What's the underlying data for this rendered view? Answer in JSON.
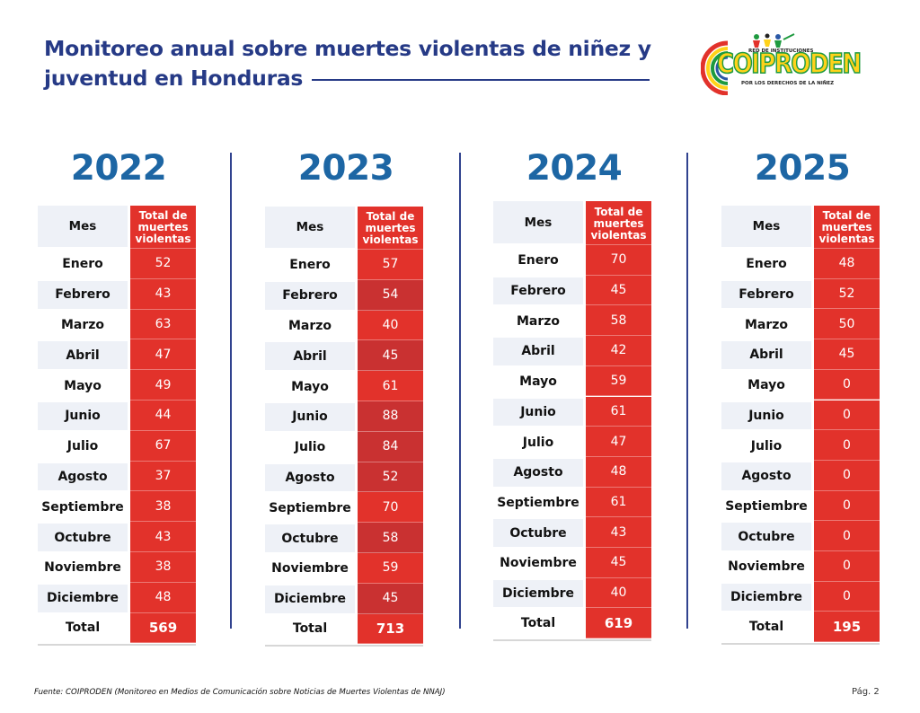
{
  "header": {
    "title_line1": "Monitoreo anual sobre muertes violentas de niñez y",
    "title_line2": "juventud en Honduras"
  },
  "logo": {
    "top_text": "RED DE INSTITUCIONES",
    "name": "COIPRODEN",
    "sub_text": "POR LOS DERECHOS DE LA NIÑEZ"
  },
  "table_headers": {
    "month": "Mes",
    "value": "Total de muertes violentas"
  },
  "total_label": "Total",
  "months": [
    "Enero",
    "Febrero",
    "Marzo",
    "Abril",
    "Mayo",
    "Junio",
    "Julio",
    "Agosto",
    "Septiembre",
    "Octubre",
    "Noviembre",
    "Diciembre"
  ],
  "years": [
    {
      "year": "2022",
      "values": [
        "52",
        "43",
        "63",
        "47",
        "49",
        "44",
        "67",
        "37",
        "38",
        "43",
        "38",
        "48"
      ],
      "total": "569"
    },
    {
      "year": "2023",
      "values": [
        "57",
        "54",
        "40",
        "45",
        "61",
        "88",
        "84",
        "52",
        "70",
        "58",
        "59",
        "45"
      ],
      "total": "713"
    },
    {
      "year": "2024",
      "values": [
        "70",
        "45",
        "58",
        "42",
        "59",
        "61",
        "47",
        "48",
        "61",
        "43",
        "45",
        "40"
      ],
      "total": "619"
    },
    {
      "year": "2025",
      "values": [
        "48",
        "52",
        "50",
        "45",
        "0",
        "0",
        "0",
        "0",
        "0",
        "0",
        "0",
        "0"
      ],
      "total": "195"
    }
  ],
  "colors": {
    "title": "#263a86",
    "year": "#1d66a4",
    "cell_red": "#e2322b",
    "cell_red_alt": "#c93131",
    "row_alt": "#eef1f7"
  },
  "footer": {
    "source": "Fuente: COIPRODEN (Monitoreo en Medios de Comunicación sobre Noticias de Muertes Violentas de NNAJ)",
    "page": "Pág. 2"
  }
}
